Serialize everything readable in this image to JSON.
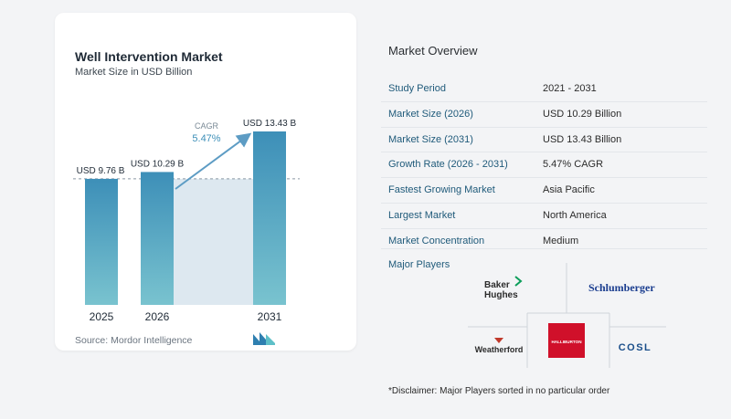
{
  "chart": {
    "title": "Well Intervention Market",
    "subtitle": "Market Size in USD Billion",
    "source": "Source:  Mordor Intelligence",
    "cagr_label": "CAGR",
    "cagr_value": "5.47%",
    "colors": {
      "bar_top": "#3d8fb8",
      "bar_bottom": "#79c3cf",
      "shade": "#dde8f0",
      "arrow": "#5d9cc4"
    }
  },
  "chart_data": {
    "type": "bar",
    "title": "Well Intervention Market",
    "subtitle": "Market Size in USD Billion",
    "categories": [
      "2025",
      "2026",
      "2031"
    ],
    "values": [
      9.76,
      10.29,
      13.43
    ],
    "data_labels": [
      "USD 9.76 B",
      "USD 10.29 B",
      "USD 13.43 B"
    ],
    "annotation": "CAGR 5.47%",
    "xlabel": "",
    "ylabel": "",
    "ylim": [
      0,
      13.43
    ],
    "grid": false
  },
  "overview": {
    "title": "Market Overview",
    "rows": [
      {
        "label": "Study Period",
        "value": "2021 - 2031"
      },
      {
        "label": "Market Size (2026)",
        "value": "USD 10.29 Billion"
      },
      {
        "label": "Market Size (2031)",
        "value": "USD 13.43 Billion"
      },
      {
        "label": "Growth Rate (2026 - 2031)",
        "value": "5.47% CAGR"
      },
      {
        "label": "Fastest Growing Market",
        "value": "Asia Pacific"
      },
      {
        "label": "Largest Market",
        "value": "North America"
      },
      {
        "label": "Market Concentration",
        "value": "Medium"
      }
    ]
  },
  "players": {
    "title": "Major Players",
    "logos": {
      "baker_line1": "Baker",
      "baker_line2": "Hughes",
      "schlumberger": "Schlumberger",
      "halliburton": "HALLIBURTON",
      "weatherford": "Weatherford",
      "cosl": "COSL"
    },
    "colors": {
      "halliburton": "#d0102a",
      "weatherford": "#c0392b",
      "cosl": "#1a4e8a",
      "baker_green": "#0b9e5a",
      "schlumberger": "#1a3d8f"
    }
  },
  "disclaimer": "*Disclaimer: Major Players sorted in no particular order"
}
